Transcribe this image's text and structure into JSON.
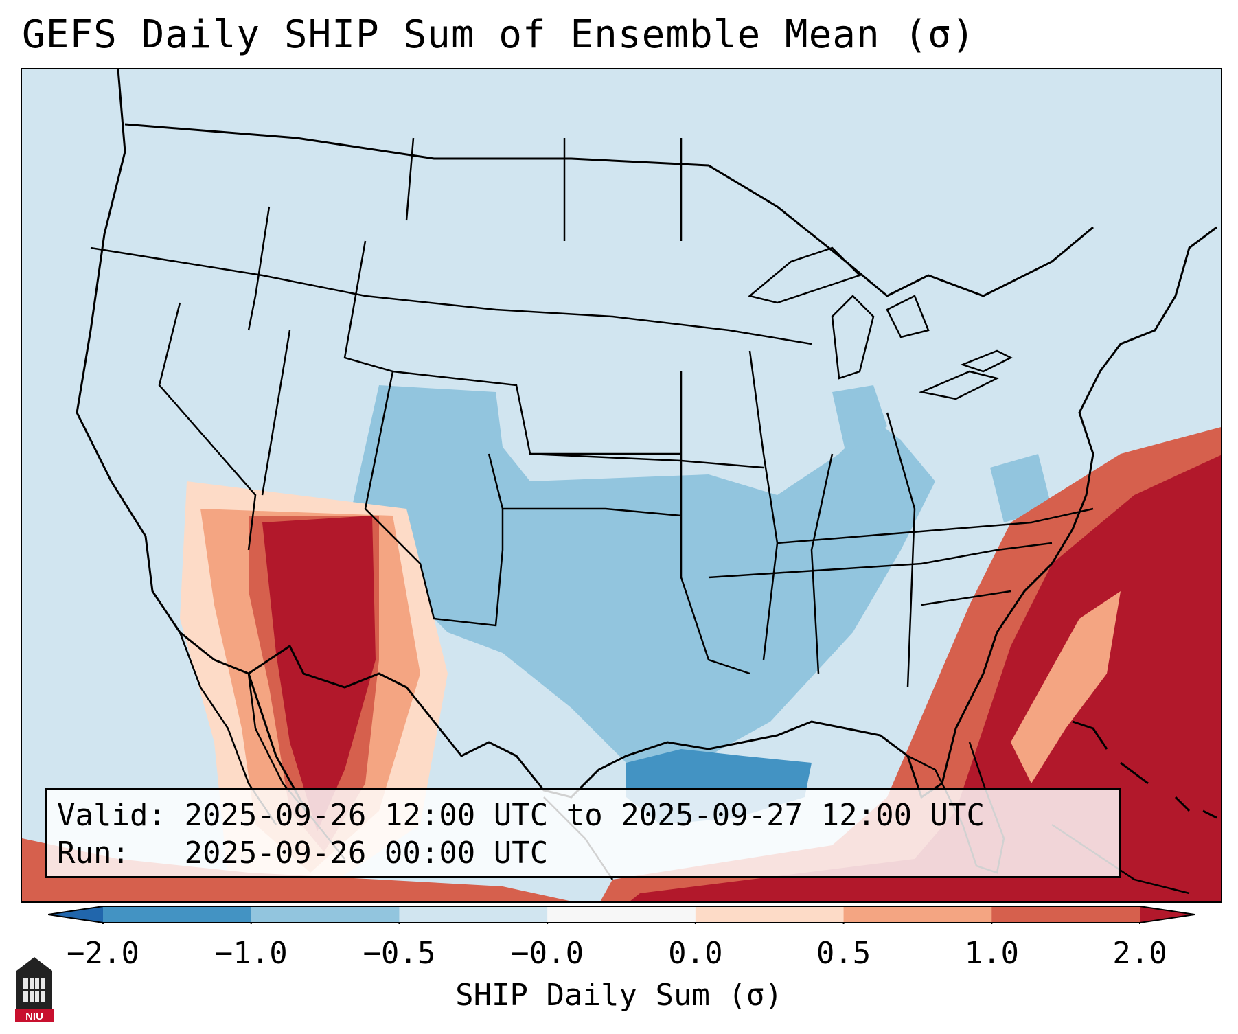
{
  "title": "GEFS Daily SHIP Sum of Ensemble Mean (σ)",
  "info": {
    "valid_label": "Valid:",
    "valid_value": "2025-09-26 12:00 UTC to 2025-09-27 12:00 UTC",
    "run_label": "Run:",
    "run_value": "2025-09-26 00:00 UTC"
  },
  "colorbar": {
    "label": "SHIP Daily Sum (σ)",
    "ticks": [
      "−2.0",
      "−1.0",
      "−0.5",
      "−0.0",
      "0.0",
      "0.5",
      "1.0",
      "2.0"
    ],
    "colors": [
      "#2166ac",
      "#4393c3",
      "#92c5de",
      "#d1e5f0",
      "#f7f7f7",
      "#fddbc7",
      "#f4a582",
      "#d6604d",
      "#b2182b"
    ],
    "extend": "both"
  },
  "map": {
    "region": "Contiguous United States",
    "background_color": "#d1e5f0",
    "highlights": [
      {
        "name": "Southwest / Arizona",
        "value_range": "> 2.0"
      },
      {
        "name": "Western Atlantic",
        "value_range": "> 2.0"
      },
      {
        "name": "Texas / Gulf",
        "value_range": "-1.0 to -0.5"
      }
    ]
  },
  "logo": {
    "icon": "niu-logo-icon",
    "text": "NIU"
  }
}
